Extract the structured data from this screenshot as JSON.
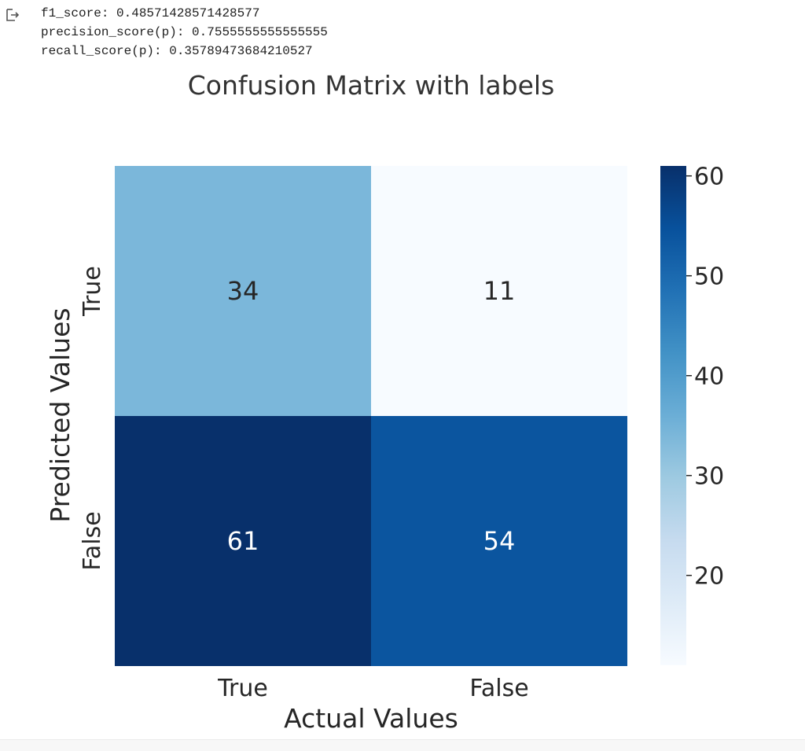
{
  "output": {
    "icon": "output-arrow-icon",
    "lines": [
      "f1_score: 0.48571428571428577",
      "precision_score(p): 0.7555555555555555",
      "recall_score(p): 0.35789473684210527"
    ]
  },
  "chart_data": {
    "type": "heatmap",
    "title": "Confusion Matrix with labels",
    "xlabel": "Actual Values",
    "ylabel": "Predicted Values",
    "x_categories": [
      "True",
      "False"
    ],
    "y_categories": [
      "True",
      "False"
    ],
    "values": [
      [
        34,
        11
      ],
      [
        61,
        54
      ]
    ],
    "colormap": "Blues",
    "colorbar": {
      "min": 11,
      "max": 61,
      "ticks": [
        20,
        30,
        40,
        50,
        60
      ]
    },
    "colors": {
      "low": "#f7fbff",
      "high": "#08306b"
    }
  }
}
